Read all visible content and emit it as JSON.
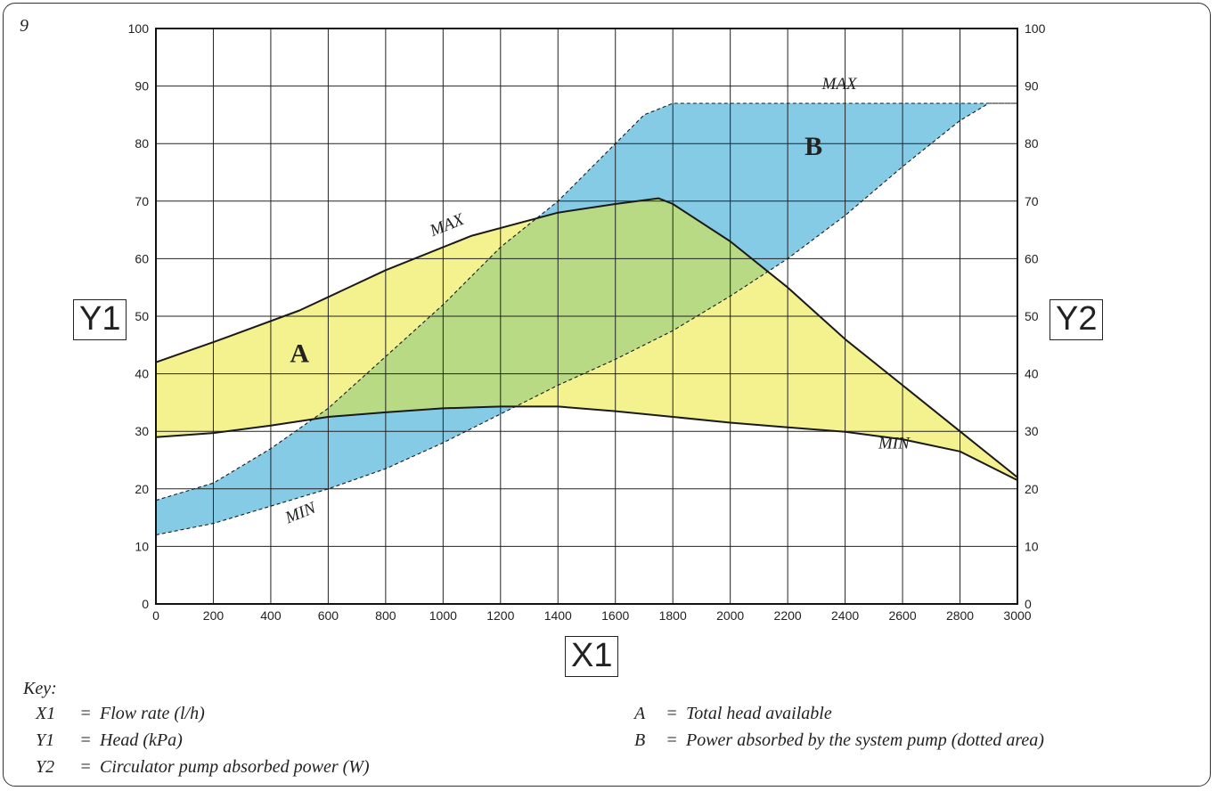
{
  "figure_number": "9",
  "axis_boxes": {
    "x": "X1",
    "y_left": "Y1",
    "y_right": "Y2"
  },
  "key": {
    "title": "Key:",
    "left": [
      {
        "sym": "X1",
        "eq": "=",
        "text": "Flow rate (l/h)"
      },
      {
        "sym": "Y1",
        "eq": "=",
        "text": "Head (kPa)"
      },
      {
        "sym": "Y2",
        "eq": "=",
        "text": "Circulator pump absorbed power (W)"
      }
    ],
    "right": [
      {
        "sym": "A",
        "eq": "=",
        "text": "Total head available"
      },
      {
        "sym": "B",
        "eq": "=",
        "text": "Power absorbed by the system pump (dotted area)"
      }
    ]
  },
  "chart_data": {
    "type": "area",
    "x_ticks": [
      "0",
      "200",
      "400",
      "600",
      "800",
      "1000",
      "1200",
      "1400",
      "1600",
      "1800",
      "2000",
      "2200",
      "2400",
      "2600",
      "2800",
      "3000"
    ],
    "y_ticks": [
      "0",
      "10",
      "20",
      "30",
      "40",
      "50",
      "60",
      "70",
      "80",
      "90",
      "100"
    ],
    "xlim": [
      0,
      3000
    ],
    "ylim": [
      0,
      100
    ],
    "grid": true,
    "colors": {
      "A": "#f4f28e",
      "B": "#86cbe6",
      "overlap": "#b8da84",
      "line": "#1a1a1a",
      "grid": "#222222"
    },
    "area_labels": {
      "A": "A",
      "B": "B"
    },
    "curve_labels": {
      "head_max": "MAX",
      "head_min": "MIN",
      "power_max": "MAX",
      "power_min": "MIN"
    },
    "series": [
      {
        "id": "head_max",
        "style": "solid",
        "x": [
          0,
          200,
          500,
          800,
          1100,
          1400,
          1600,
          1750,
          1800,
          2000,
          2200,
          2400,
          2600,
          2800,
          3000
        ],
        "y": [
          42,
          45.5,
          51,
          58,
          64,
          68,
          69.5,
          70.5,
          69.5,
          63,
          55,
          46,
          38,
          30,
          22
        ]
      },
      {
        "id": "head_min",
        "style": "solid",
        "x": [
          0,
          200,
          400,
          600,
          800,
          1000,
          1200,
          1400,
          1600,
          1800,
          2000,
          2200,
          2400,
          2600,
          2800,
          3000
        ],
        "y": [
          29,
          29.7,
          31,
          32.5,
          33.3,
          34,
          34.3,
          34.3,
          33.5,
          32.5,
          31.5,
          30.7,
          29.9,
          28.6,
          26.5,
          21.5
        ]
      },
      {
        "id": "power_max",
        "style": "dashed",
        "x": [
          0,
          200,
          400,
          600,
          800,
          1000,
          1200,
          1400,
          1600,
          1700,
          1800,
          2000,
          2200,
          2400,
          2600,
          2800,
          2900,
          3000
        ],
        "y": [
          18,
          21,
          27,
          34,
          43,
          52,
          62,
          70,
          80,
          85,
          87,
          87,
          87,
          87,
          87,
          87,
          87,
          87
        ]
      },
      {
        "id": "power_min",
        "style": "dashed",
        "x": [
          0,
          200,
          400,
          600,
          800,
          1000,
          1200,
          1400,
          1600,
          1800,
          2000,
          2200,
          2400,
          2600,
          2800,
          2900,
          3000
        ],
        "y": [
          12,
          14,
          17,
          20,
          23.5,
          28,
          33,
          38,
          42.5,
          47.5,
          53.5,
          60,
          67.5,
          76,
          84,
          87,
          87
        ]
      }
    ]
  }
}
